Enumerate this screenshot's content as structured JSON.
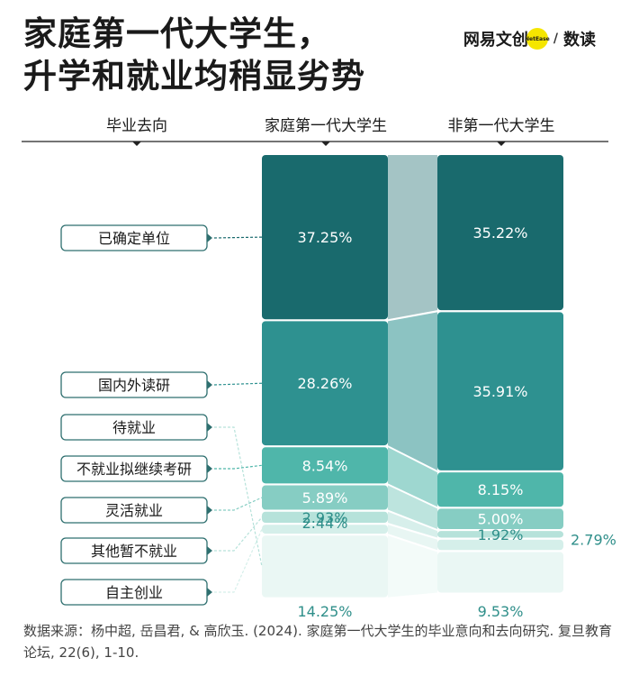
{
  "title": {
    "line1": "家庭第一代大学生，",
    "line2": "升学和就业均稍显劣势"
  },
  "brand": {
    "name": "网易文创",
    "badge": "NetEase",
    "sub": "数读",
    "dot_color": "#f5e600"
  },
  "chart_data": {
    "type": "stacked-bar",
    "header": {
      "category": "毕业去向",
      "groups": [
        "家庭第一代大学生",
        "非第一代大学生"
      ]
    },
    "categories": [
      "已确定单位",
      "国内外读研",
      "待就业",
      "不就业拟继续考研",
      "灵活就业",
      "其他暂不就业",
      "自主创业"
    ],
    "series": [
      {
        "name": "家庭第一代大学生",
        "values": [
          37.25,
          28.26,
          14.25,
          8.54,
          5.89,
          2.93,
          2.44
        ]
      },
      {
        "name": "非第一代大学生",
        "values": [
          35.22,
          35.91,
          9.53,
          8.15,
          5.0,
          1.92,
          2.79
        ]
      }
    ],
    "value_labels": [
      [
        "37.25%",
        "28.26%",
        "14.25%",
        "8.54%",
        "5.89%",
        "2.93%",
        "2.44%"
      ],
      [
        "35.22%",
        "35.91%",
        "9.53%",
        "8.15%",
        "5.00%",
        "1.92%",
        "2.79%"
      ]
    ],
    "stacking_order": [
      "已确定单位",
      "国内外读研",
      "不就业拟继续考研",
      "灵活就业",
      "其他暂不就业",
      "自主创业",
      "待就业"
    ],
    "colors": [
      "#196a6d",
      "#2e9190",
      "#4fb6aa",
      "#86cdc3",
      "#b6e2da",
      "#d5efea",
      "#eaf7f4"
    ],
    "connector_color": "#a4c4c5",
    "label_color": "#2f8f8a",
    "legend_border_color": "#2e6f6f"
  },
  "source": "数据来源：杨中超, 岳昌君, & 高欣玉. (2024). 家庭第一代大学生的毕业意向和去向研究. 复旦教育论坛, 22(6), 1-10."
}
